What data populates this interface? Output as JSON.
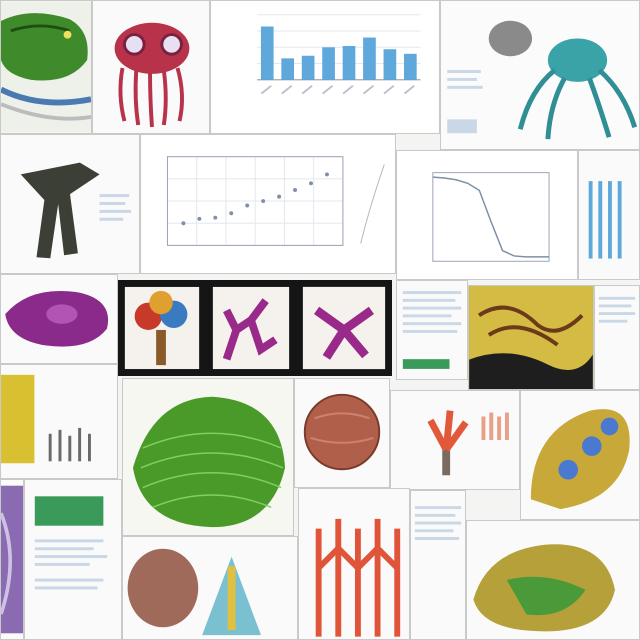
{
  "collage": {
    "theme": "scientific-illustration-collage",
    "colors": {
      "background": "#f4f4f2",
      "bar_blue": "#5fa8dc",
      "line_gray": "#7f8fa6",
      "coral": "#e2583a",
      "green": "#3f8a2a",
      "purple": "#8a2a8a"
    }
  },
  "chart_data": [
    {
      "type": "bar",
      "title": "",
      "categories": [
        "",
        "",
        "",
        "",
        "",
        "",
        "",
        ""
      ],
      "values": [
        0.82,
        0.33,
        0.37,
        0.5,
        0.52,
        0.65,
        0.47,
        0.4
      ],
      "ylim": [
        0,
        1
      ],
      "grid": true
    },
    {
      "type": "scatter",
      "title": "",
      "x": [
        1,
        2,
        3,
        4,
        5,
        6,
        7,
        8,
        9,
        10
      ],
      "y": [
        2.0,
        2.4,
        2.5,
        2.9,
        3.6,
        4.0,
        4.4,
        5.0,
        5.6,
        6.4
      ],
      "ylim": [
        0,
        8
      ],
      "grid": true
    },
    {
      "type": "line",
      "title": "",
      "x": [
        0,
        1,
        2,
        3,
        4,
        5,
        6,
        7,
        8,
        9,
        10
      ],
      "y": [
        0.95,
        0.94,
        0.92,
        0.88,
        0.8,
        0.45,
        0.12,
        0.06,
        0.05,
        0.05,
        0.05
      ],
      "ylim": [
        0,
        1
      ],
      "grid": false
    }
  ]
}
